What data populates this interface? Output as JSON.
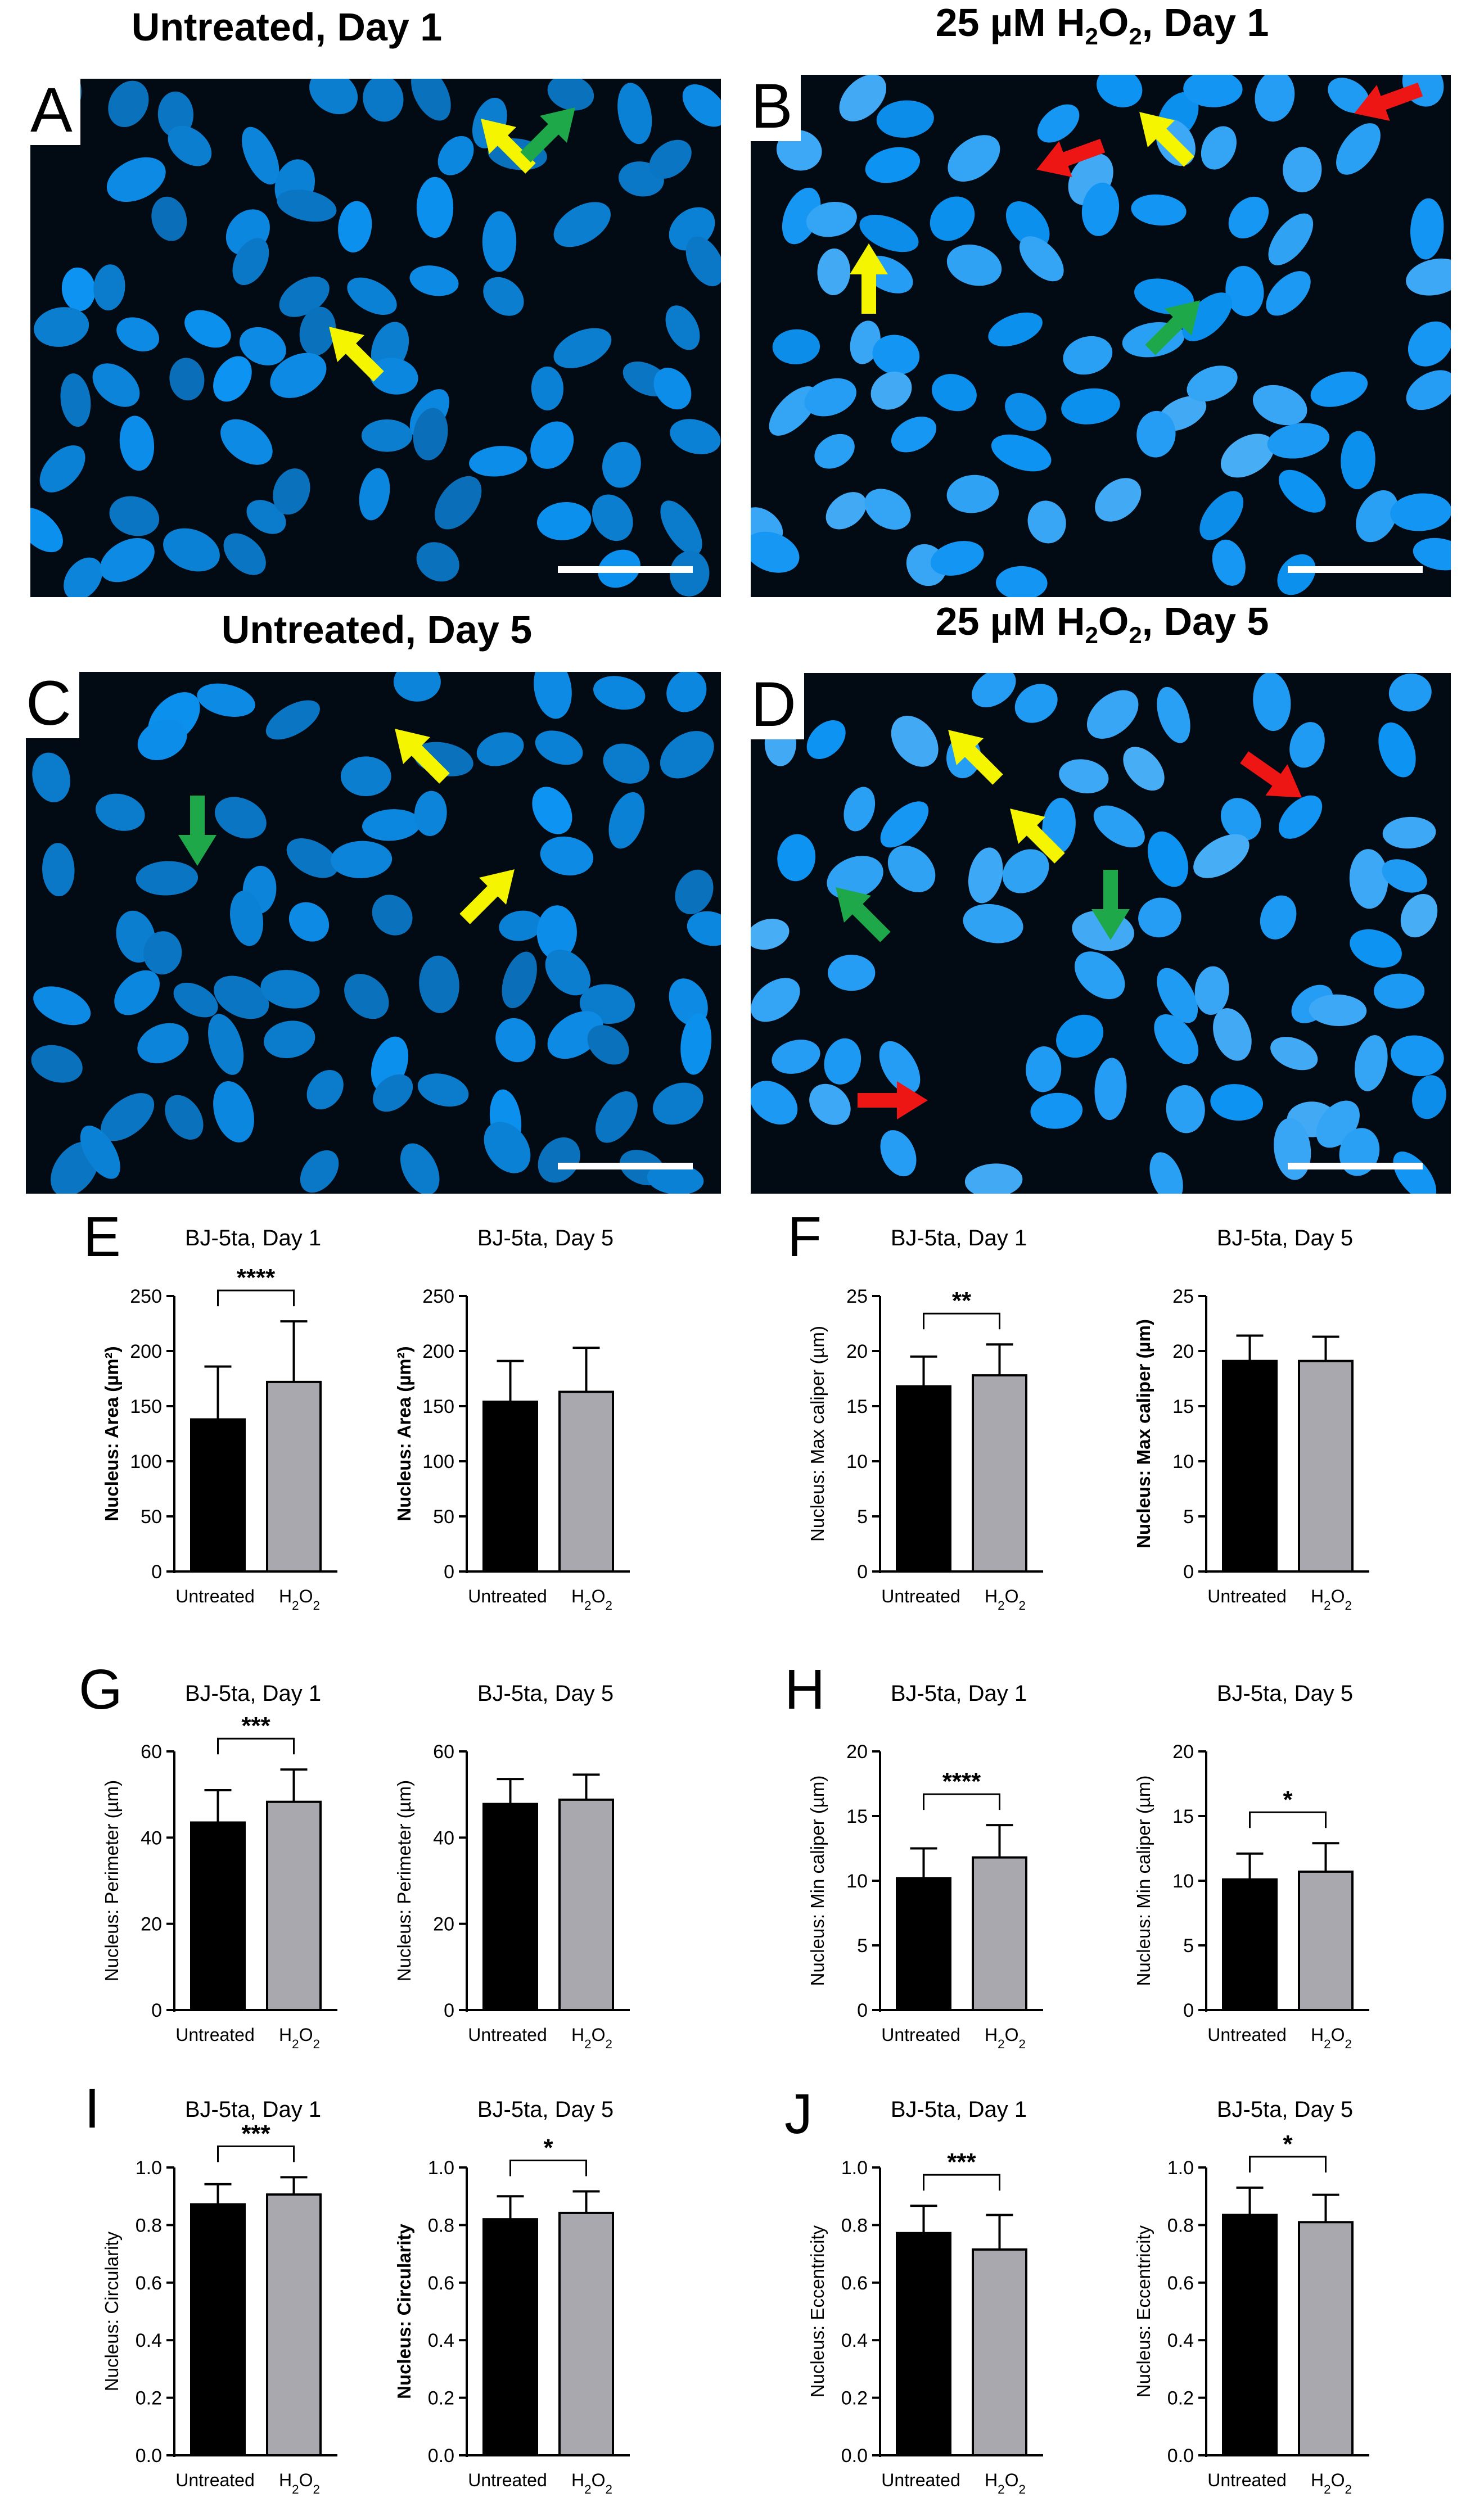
{
  "micrographs": [
    {
      "letter": "A",
      "title_parts": [
        "Untreated, Day 1"
      ],
      "arrows": [
        {
          "color": "yellow"
        },
        {
          "color": "green"
        },
        {
          "color": "yellow"
        }
      ]
    },
    {
      "letter": "B",
      "title_parts": [
        "25 µM H",
        "2",
        "O",
        "2",
        ", Day 1"
      ],
      "arrows": [
        {
          "color": "red"
        },
        {
          "color": "red"
        },
        {
          "color": "yellow"
        },
        {
          "color": "yellow"
        },
        {
          "color": "green"
        }
      ]
    },
    {
      "letter": "C",
      "title_parts": [
        "Untreated, Day 5"
      ],
      "arrows": [
        {
          "color": "yellow"
        },
        {
          "color": "green"
        },
        {
          "color": "yellow"
        }
      ]
    },
    {
      "letter": "D",
      "title_parts": [
        "25 µM H",
        "2",
        "O",
        "2",
        ", Day 5"
      ],
      "arrows": [
        {
          "color": "yellow"
        },
        {
          "color": "yellow"
        },
        {
          "color": "red"
        },
        {
          "color": "green"
        },
        {
          "color": "green"
        },
        {
          "color": "red"
        }
      ]
    }
  ],
  "colors": {
    "nucleus": "#1a8fe0",
    "background": "#020a14",
    "untreated_bar": "#000000",
    "h2o2_bar": "#a8a8ae",
    "yellow": "#f5f500",
    "green": "#1fa84a",
    "red": "#ee1515",
    "scalebar": "#ffffff"
  },
  "chart_data": [
    {
      "panel": "E",
      "type": "bar",
      "title": "BJ-5ta, Day 1",
      "ylabel": "Nucleus: Area (µm²)",
      "ylim": [
        0,
        250
      ],
      "yticks": [
        "0",
        "50",
        "100",
        "150",
        "200",
        "250"
      ],
      "categories": [
        "Untreated",
        "H2O2"
      ],
      "values": [
        138,
        172
      ],
      "errors": [
        48,
        55
      ],
      "significance": "****"
    },
    {
      "panel": "E",
      "type": "bar",
      "title": "BJ-5ta, Day 5",
      "ylabel": "Nucleus: Area (µm²)",
      "ylim": [
        0,
        250
      ],
      "yticks": [
        "0",
        "50",
        "100",
        "150",
        "200",
        "250"
      ],
      "categories": [
        "Untreated",
        "H2O2"
      ],
      "values": [
        154,
        163
      ],
      "errors": [
        37,
        40
      ],
      "significance": ""
    },
    {
      "panel": "F",
      "type": "bar",
      "title": "BJ-5ta, Day 1",
      "ylabel": "Nucleus: Max caliper (µm)",
      "ylim": [
        0,
        25
      ],
      "yticks": [
        "0",
        "5",
        "10",
        "15",
        "20",
        "25"
      ],
      "categories": [
        "Untreated",
        "H2O2"
      ],
      "values": [
        16.8,
        17.8
      ],
      "errors": [
        2.7,
        2.8
      ],
      "significance": "**"
    },
    {
      "panel": "F",
      "type": "bar",
      "title": "BJ-5ta, Day 5",
      "ylabel": "Nucleus: Max caliper (µm)",
      "ylim": [
        0,
        25
      ],
      "yticks": [
        "0",
        "5",
        "10",
        "15",
        "20",
        "25"
      ],
      "categories": [
        "Untreated",
        "H2O2"
      ],
      "values": [
        19.1,
        19.1
      ],
      "errors": [
        2.3,
        2.2
      ],
      "significance": ""
    },
    {
      "panel": "G",
      "type": "bar",
      "title": "BJ-5ta, Day 1",
      "ylabel": "Nucleus: Perimeter (µm)",
      "ylim": [
        0,
        60
      ],
      "yticks": [
        "0",
        "20",
        "40",
        "60"
      ],
      "categories": [
        "Untreated",
        "H2O2"
      ],
      "values": [
        43.5,
        48.3
      ],
      "errors": [
        7.5,
        7.5
      ],
      "significance": "***"
    },
    {
      "panel": "G",
      "type": "bar",
      "title": "BJ-5ta, Day 5",
      "ylabel": "Nucleus: Perimeter (µm)",
      "ylim": [
        0,
        60
      ],
      "yticks": [
        "0",
        "20",
        "40",
        "60"
      ],
      "categories": [
        "Untreated",
        "H2O2"
      ],
      "values": [
        47.8,
        48.8
      ],
      "errors": [
        5.8,
        5.8
      ],
      "significance": ""
    },
    {
      "panel": "H",
      "type": "bar",
      "title": "BJ-5ta, Day 1",
      "ylabel": "Nucleus: Min caliper (µm)",
      "ylim": [
        0,
        20
      ],
      "yticks": [
        "0",
        "5",
        "10",
        "15",
        "20"
      ],
      "categories": [
        "Untreated",
        "H2O2"
      ],
      "values": [
        10.2,
        11.8
      ],
      "errors": [
        2.3,
        2.5
      ],
      "significance": "****"
    },
    {
      "panel": "H",
      "type": "bar",
      "title": "BJ-5ta, Day 5",
      "ylabel": "Nucleus: Min caliper (µm)",
      "ylim": [
        0,
        20
      ],
      "yticks": [
        "0",
        "5",
        "10",
        "15",
        "20"
      ],
      "categories": [
        "Untreated",
        "H2O2"
      ],
      "values": [
        10.1,
        10.7
      ],
      "errors": [
        2.0,
        2.2
      ],
      "significance": "*"
    },
    {
      "panel": "I",
      "type": "bar",
      "title": "BJ-5ta, Day 1",
      "ylabel": "Nucleus: Circularity",
      "ylim": [
        0,
        1.0
      ],
      "yticks": [
        "0.0",
        "0.2",
        "0.4",
        "0.6",
        "0.8",
        "1.0"
      ],
      "categories": [
        "Untreated",
        "H2O2"
      ],
      "values": [
        0.872,
        0.906
      ],
      "errors": [
        0.07,
        0.06
      ],
      "significance": "***"
    },
    {
      "panel": "I",
      "type": "bar",
      "title": "BJ-5ta, Day 5",
      "ylabel": "Nucleus: Circularity",
      "ylim": [
        0,
        1.0
      ],
      "yticks": [
        "0.0",
        "0.2",
        "0.4",
        "0.6",
        "0.8",
        "1.0"
      ],
      "categories": [
        "Untreated",
        "H2O2"
      ],
      "values": [
        0.82,
        0.842
      ],
      "errors": [
        0.08,
        0.075
      ],
      "significance": "*"
    },
    {
      "panel": "J",
      "type": "bar",
      "title": "BJ-5ta, Day 1",
      "ylabel": "Nucleus: Eccentricity",
      "ylim": [
        0,
        1.0
      ],
      "yticks": [
        "0.0",
        "0.2",
        "0.4",
        "0.6",
        "0.8",
        "1.0"
      ],
      "categories": [
        "Untreated",
        "H2O2"
      ],
      "values": [
        0.772,
        0.715
      ],
      "errors": [
        0.095,
        0.12
      ],
      "significance": "***"
    },
    {
      "panel": "J",
      "type": "bar",
      "title": "BJ-5ta, Day 5",
      "ylabel": "Nucleus: Eccentricity",
      "ylim": [
        0,
        1.0
      ],
      "yticks": [
        "0.0",
        "0.2",
        "0.4",
        "0.6",
        "0.8",
        "1.0"
      ],
      "categories": [
        "Untreated",
        "H2O2"
      ],
      "values": [
        0.835,
        0.81
      ],
      "errors": [
        0.095,
        0.095
      ],
      "significance": "*"
    }
  ]
}
